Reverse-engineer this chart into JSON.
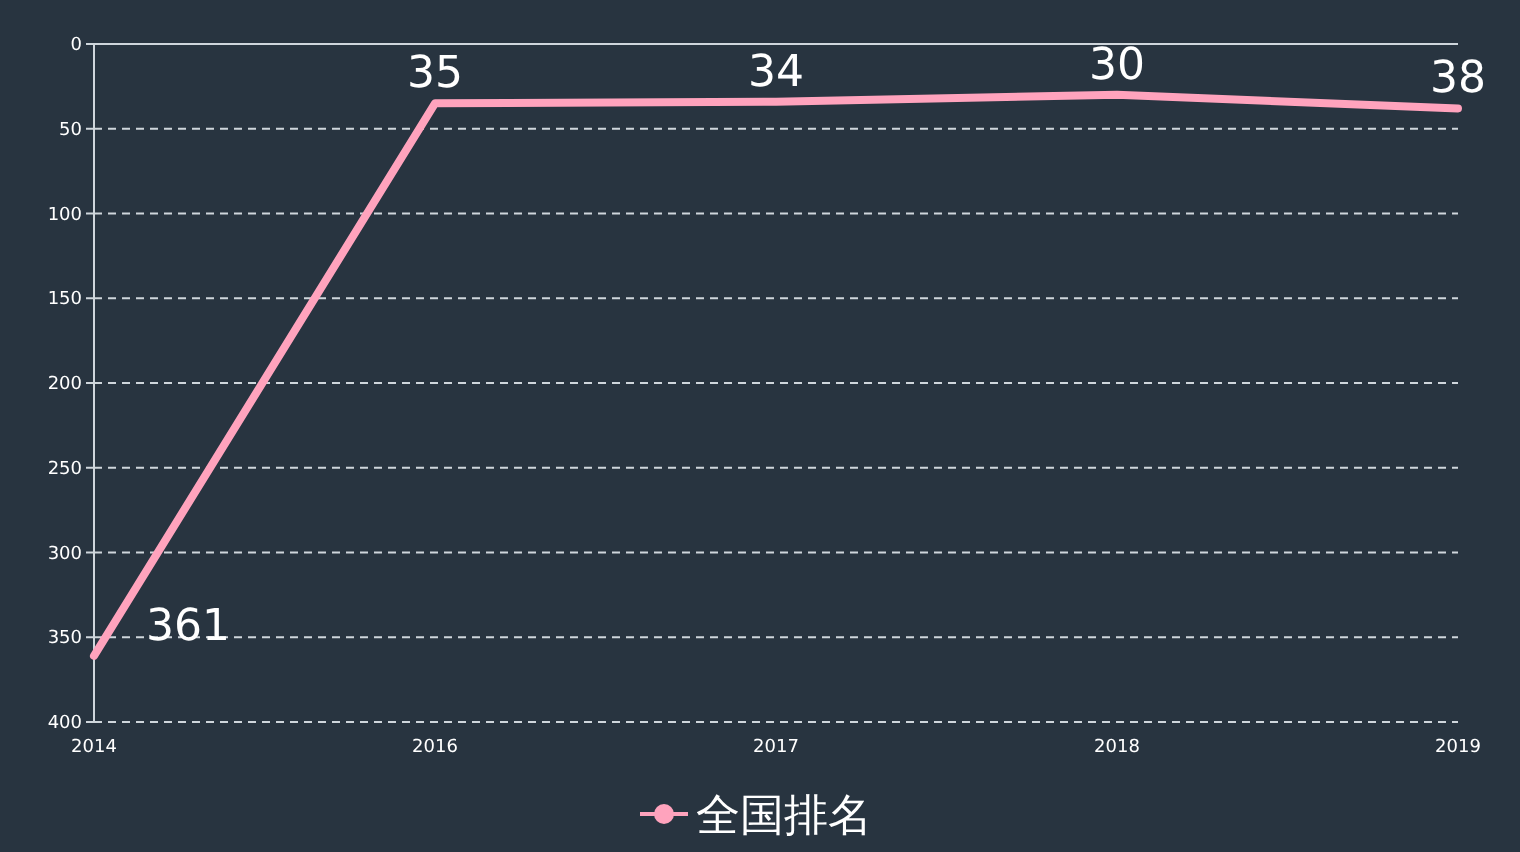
{
  "chart_data": {
    "type": "line",
    "categories": [
      "2014",
      "2016",
      "2017",
      "2018",
      "2019"
    ],
    "series": [
      {
        "name": "全国排名",
        "color": "#ffa3bd",
        "values": [
          361,
          35,
          34,
          30,
          38
        ]
      }
    ],
    "ylim": [
      400,
      0
    ],
    "yticks": [
      0,
      50,
      100,
      150,
      200,
      250,
      300,
      350,
      400
    ],
    "grid": "y",
    "legend": "bottom",
    "data_labels": true
  }
}
